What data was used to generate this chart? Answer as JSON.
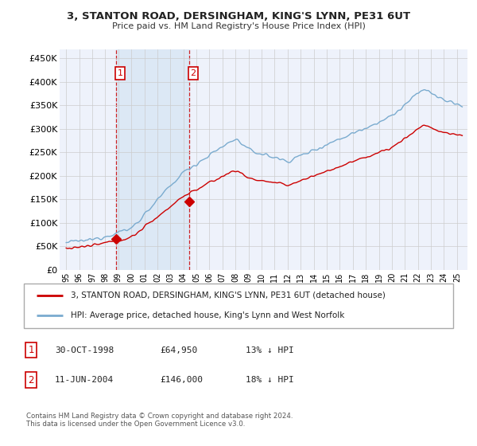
{
  "title": "3, STANTON ROAD, DERSINGHAM, KING'S LYNN, PE31 6UT",
  "subtitle": "Price paid vs. HM Land Registry's House Price Index (HPI)",
  "ylim": [
    0,
    470000
  ],
  "yticks": [
    0,
    50000,
    100000,
    150000,
    200000,
    250000,
    300000,
    350000,
    400000,
    450000
  ],
  "ytick_labels": [
    "£0",
    "£50K",
    "£100K",
    "£150K",
    "£200K",
    "£250K",
    "£300K",
    "£350K",
    "£400K",
    "£450K"
  ],
  "sale1_date": 1998.83,
  "sale1_price": 64950,
  "sale1_label": "1",
  "sale2_date": 2004.44,
  "sale2_price": 146000,
  "sale2_label": "2",
  "legend_entry1": "3, STANTON ROAD, DERSINGHAM, KING'S LYNN, PE31 6UT (detached house)",
  "legend_entry2": "HPI: Average price, detached house, King's Lynn and West Norfolk",
  "table_row1": [
    "1",
    "30-OCT-1998",
    "£64,950",
    "13% ↓ HPI"
  ],
  "table_row2": [
    "2",
    "11-JUN-2004",
    "£146,000",
    "18% ↓ HPI"
  ],
  "footnote": "Contains HM Land Registry data © Crown copyright and database right 2024.\nThis data is licensed under the Open Government Licence v3.0.",
  "red_color": "#cc0000",
  "blue_color": "#7aabcf",
  "shade_color": "#dce8f5",
  "background_color": "#ffffff",
  "plot_bg_color": "#eef2fb",
  "grid_color": "#cccccc",
  "xtick_start": 1995,
  "xtick_end": 2025,
  "xlim_left": 1994.5,
  "xlim_right": 2025.8
}
